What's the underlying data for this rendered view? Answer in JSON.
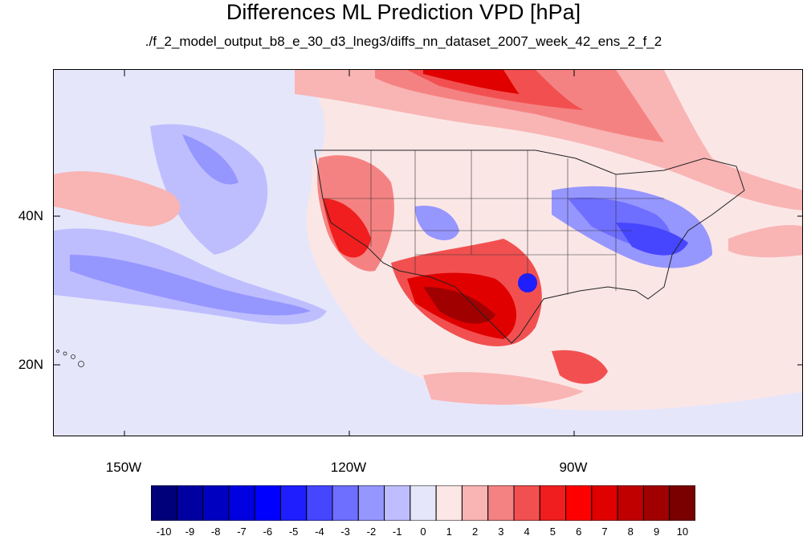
{
  "title": "Differences ML Prediction VPD [hPa]",
  "subtitle": "./f_2_model_output_b8_e_30_d3_lneg3/diffs_nn_dataset_2007_week_42_ens_2_f_2",
  "lat_labels": [
    "40N",
    "20N"
  ],
  "lon_labels": [
    "150W",
    "120W",
    "90W"
  ],
  "colorbar": {
    "labels": [
      "-10",
      "-9",
      "-8",
      "-7",
      "-6",
      "-5",
      "-4",
      "-3",
      "-2",
      "-1",
      "0",
      "1",
      "2",
      "3",
      "4",
      "5",
      "6",
      "7",
      "8",
      "9",
      "10"
    ],
    "colors": [
      "#00007a",
      "#0000a0",
      "#0000c0",
      "#0000e0",
      "#0000ff",
      "#1e1eff",
      "#4646ff",
      "#6e6eff",
      "#9696ff",
      "#bebeff",
      "#e6e6fa",
      "#fde6e6",
      "#f9b4b4",
      "#f58282",
      "#f25050",
      "#f01e1e",
      "#ff0000",
      "#e00000",
      "#c00000",
      "#a00000",
      "#7a0000"
    ]
  },
  "colors": {
    "background": "#fbe6e6",
    "neg_light": "#e6e6fa",
    "neg_mid": "#9696ff",
    "neg_strong": "#4646ff",
    "pos_light": "#f9b4b4",
    "pos_mid": "#f25050",
    "pos_strong": "#c00000"
  }
}
